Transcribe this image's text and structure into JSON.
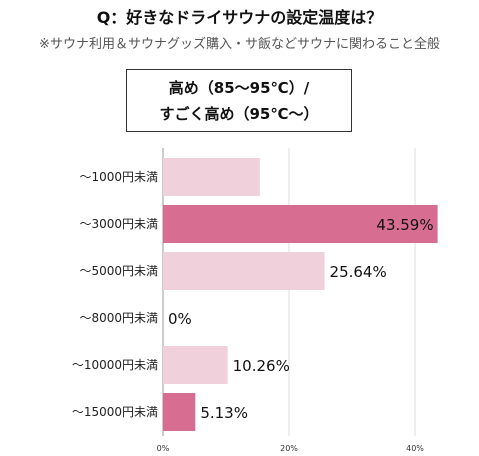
{
  "header": {
    "title": "Q：好きなドライサウナの設定温度は？",
    "subtitle": "※サウナ利用＆サウナグッズ購入・サ飯などサウナに関わること全般"
  },
  "chart_data": {
    "type": "bar",
    "orientation": "horizontal",
    "segment_label": [
      "高め（85～95℃）/",
      "すごく高め（95℃～）"
    ],
    "categories": [
      "～1000円未満",
      "～3000円未満",
      "～5000円未満",
      "～8000円未満",
      "～10000円未満",
      "～15000円未満"
    ],
    "values": [
      15.38,
      43.59,
      25.64,
      0,
      10.26,
      5.13
    ],
    "value_labels": [
      "",
      "43.59%",
      "25.64%",
      "0%",
      "10.26%",
      "5.13%"
    ],
    "bar_colors": [
      "#f0d0da",
      "#d86d92",
      "#f0d0da",
      "#f0d0da",
      "#f0d0da",
      "#d86d92"
    ],
    "xlim": [
      0,
      50
    ],
    "xticks": [
      0,
      20,
      40
    ],
    "xtick_labels": [
      "0%",
      "20%",
      "40%"
    ],
    "grid": true
  }
}
